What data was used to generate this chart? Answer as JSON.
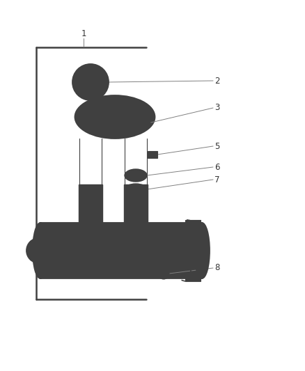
{
  "bg_color": "#ffffff",
  "line_color": "#404040",
  "callout_color": "#808080",
  "label_color": "#333333",
  "label_fontsize": 8.5,
  "fig_width": 4.38,
  "fig_height": 5.33,
  "dpi": 100,
  "bracket_lw": 1.8,
  "part_lw": 1.0,
  "part_lw_thick": 1.3
}
